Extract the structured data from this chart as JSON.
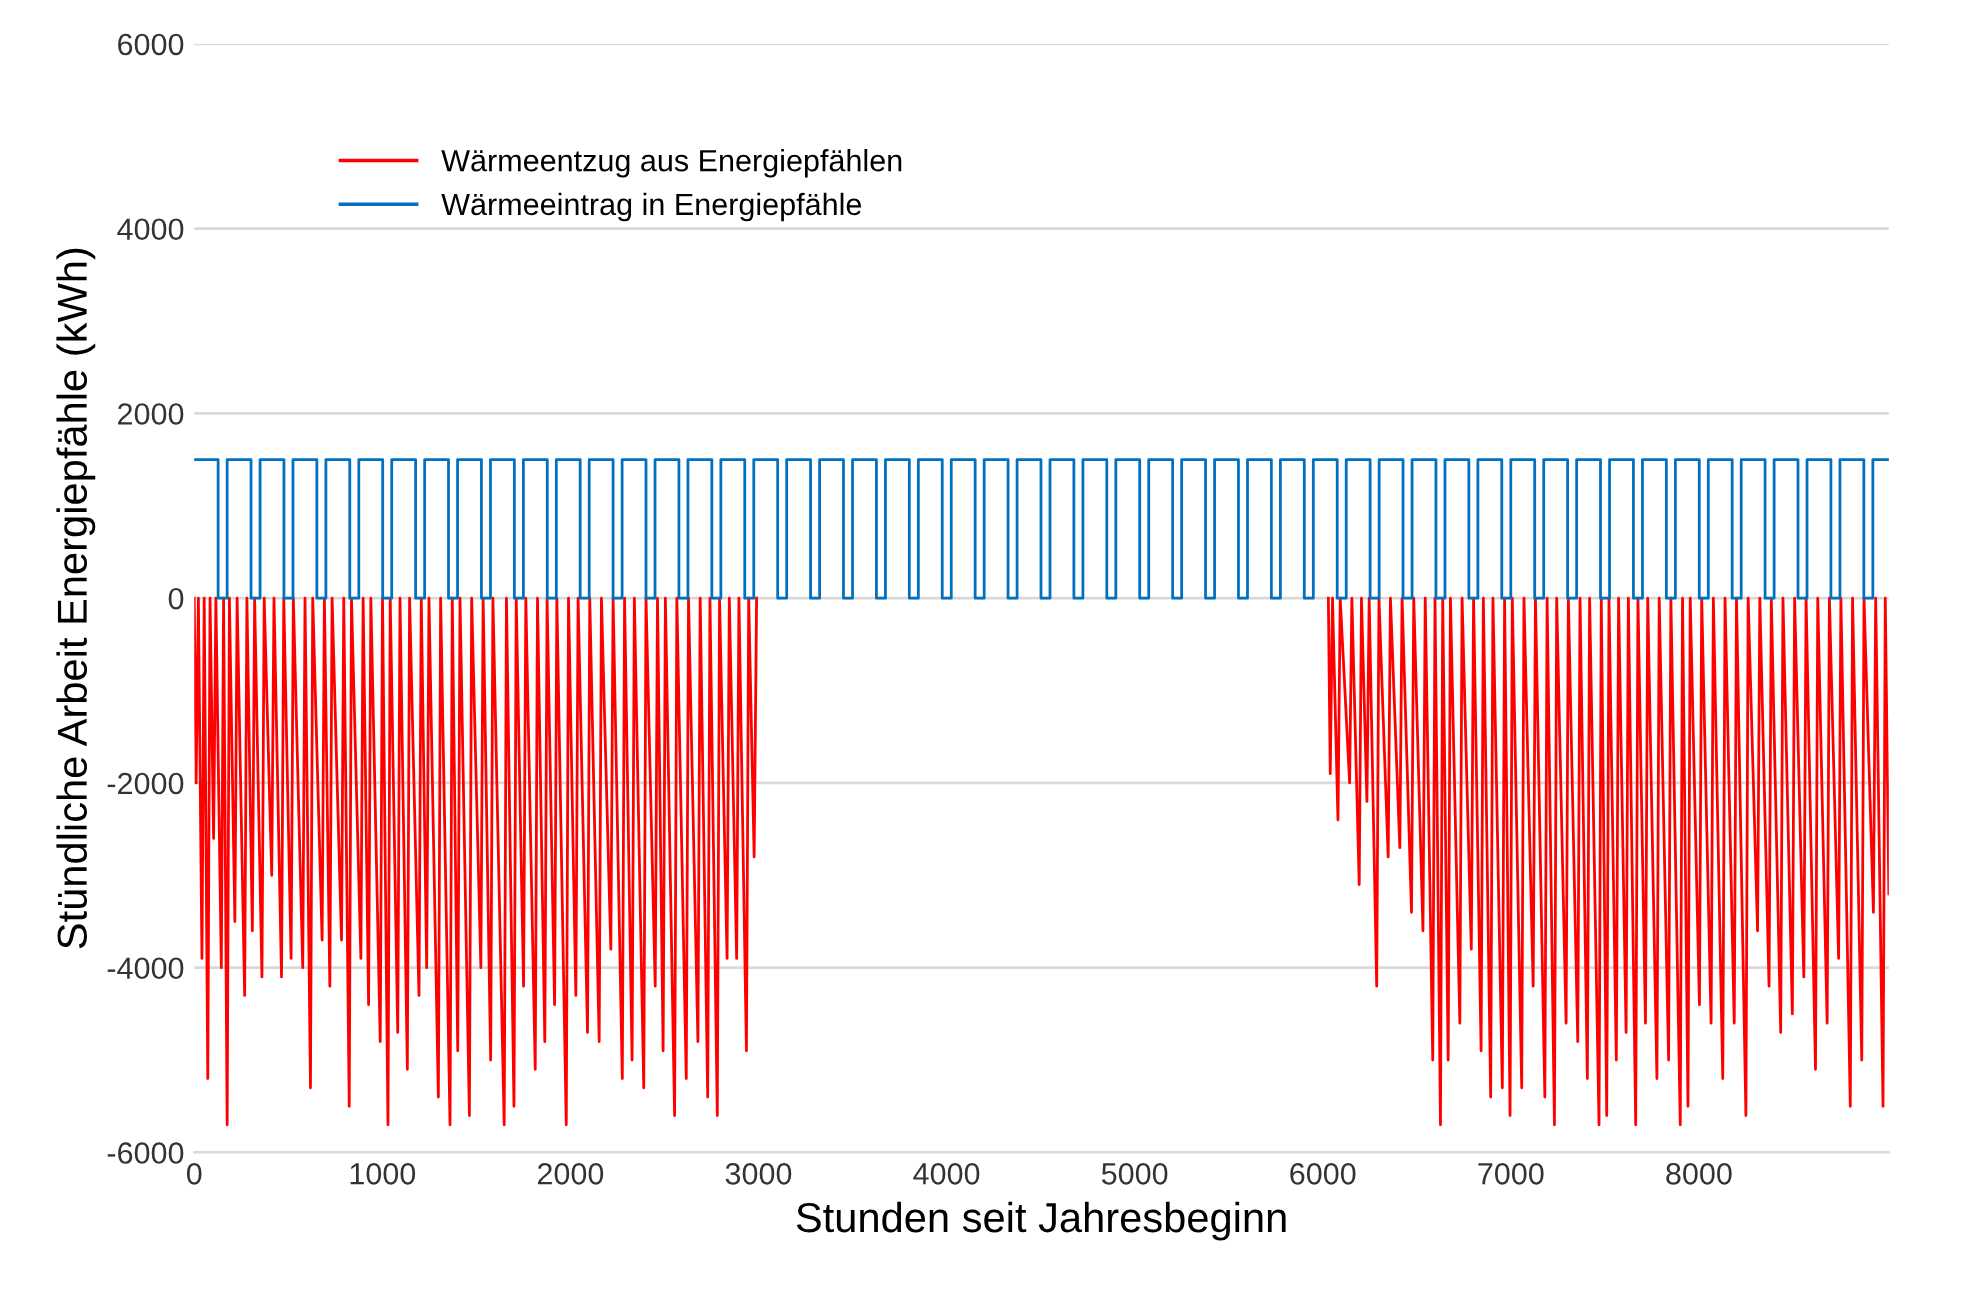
{
  "chart_data": {
    "type": "line",
    "xlabel": "Stunden seit Jahresbeginn",
    "ylabel": "Stündliche Arbeit Energiepfähle (kWh)",
    "xlim": [
      0,
      9010
    ],
    "xticks": [
      0,
      1000,
      2000,
      3000,
      4000,
      5000,
      6000,
      7000,
      8000
    ],
    "ylim": [
      -6000,
      6000
    ],
    "yticks": [
      -6000,
      -4000,
      -2000,
      0,
      2000,
      4000,
      6000
    ],
    "grid": "y",
    "legend": "top left",
    "series": [
      {
        "name": "Wärmeentzug aus Energiepfählen",
        "color": "#ff0000",
        "x": [
          0,
          10,
          22,
          41,
          53,
          72,
          84,
          103,
          115,
          144,
          156,
          175,
          187,
          216,
          228,
          268,
          280,
          309,
          321,
          360,
          372,
          412,
          424,
          464,
          476,
          515,
          527,
          577,
          589,
          618,
          630,
          680,
          692,
          721,
          733,
          783,
          795,
          824,
          836,
          886,
          898,
          927,
          939,
          989,
          1001,
          1030,
          1042,
          1082,
          1094,
          1133,
          1145,
          1195,
          1207,
          1236,
          1248,
          1298,
          1310,
          1360,
          1372,
          1401,
          1413,
          1463,
          1475,
          1524,
          1536,
          1576,
          1588,
          1648,
          1660,
          1700,
          1712,
          1751,
          1763,
          1813,
          1825,
          1864,
          1876,
          1916,
          1928,
          1978,
          1990,
          2029,
          2041,
          2091,
          2103,
          2153,
          2165,
          2215,
          2227,
          2276,
          2288,
          2328,
          2340,
          2390,
          2402,
          2451,
          2463,
          2493,
          2505,
          2554,
          2566,
          2616,
          2628,
          2678,
          2690,
          2730,
          2742,
          2781,
          2793,
          2833,
          2845,
          2884,
          2896,
          2936,
          2948,
          2977,
          2990,
          4500,
          6030,
          6040,
          6052,
          6081,
          6093,
          6143,
          6155,
          6194,
          6206,
          6235,
          6247,
          6287,
          6299,
          6348,
          6360,
          6410,
          6422,
          6472,
          6484,
          6533,
          6545,
          6585,
          6597,
          6626,
          6638,
          6667,
          6679,
          6729,
          6741,
          6790,
          6802,
          6842,
          6854,
          6893,
          6905,
          6955,
          6967,
          6996,
          7008,
          7058,
          7070,
          7119,
          7131,
          7181,
          7193,
          7232,
          7244,
          7294,
          7306,
          7356,
          7368,
          7407,
          7419,
          7469,
          7481,
          7510,
          7522,
          7561,
          7573,
          7613,
          7625,
          7664,
          7676,
          7716,
          7728,
          7777,
          7789,
          7839,
          7851,
          7901,
          7913,
          7942,
          7954,
          8003,
          8015,
          8065,
          8077,
          8127,
          8139,
          8188,
          8200,
          8250,
          8262,
          8312,
          8324,
          8373,
          8385,
          8435,
          8447,
          8497,
          8509,
          8558,
          8570,
          8620,
          8632,
          8682,
          8694,
          8743,
          8755,
          8805,
          8817,
          8866,
          8878,
          8928,
          8940,
          8979,
          8991,
          9010
        ],
        "values": [
          0,
          -2000,
          0,
          -3900,
          0,
          -5200,
          0,
          -2600,
          0,
          -4000,
          0,
          -5700,
          0,
          -3500,
          0,
          -4300,
          0,
          -3600,
          0,
          -4100,
          0,
          -3000,
          0,
          -4100,
          0,
          -3900,
          0,
          -4000,
          0,
          -5300,
          0,
          -3700,
          0,
          -4200,
          0,
          -3700,
          0,
          -5500,
          0,
          -3900,
          0,
          -4400,
          0,
          -4800,
          0,
          -5700,
          0,
          -4700,
          0,
          -5100,
          0,
          -4300,
          0,
          -4000,
          0,
          -5400,
          0,
          -5700,
          0,
          -4900,
          0,
          -5600,
          0,
          -4000,
          0,
          -5000,
          0,
          -5700,
          0,
          -5500,
          0,
          -4200,
          0,
          -5100,
          0,
          -4800,
          0,
          -4400,
          0,
          -5700,
          0,
          -4300,
          0,
          -4700,
          0,
          -4800,
          0,
          -3800,
          0,
          -5200,
          0,
          -5000,
          0,
          -5300,
          0,
          -4200,
          0,
          -4900,
          0,
          -5600,
          0,
          -5200,
          0,
          -4800,
          0,
          -5400,
          0,
          -5600,
          0,
          -3900,
          0,
          -3900,
          0,
          -4900,
          0,
          -2800,
          0,
          null,
          0,
          -1900,
          0,
          -2400,
          0,
          -2000,
          0,
          -3100,
          0,
          -2200,
          0,
          -4200,
          0,
          -2800,
          0,
          -2700,
          0,
          -3400,
          0,
          -3600,
          0,
          -5000,
          0,
          -5700,
          0,
          -5000,
          0,
          -4600,
          0,
          -3800,
          0,
          -4900,
          0,
          -5400,
          0,
          -5300,
          0,
          -5600,
          0,
          -5300,
          0,
          -4200,
          0,
          -5400,
          0,
          -5700,
          0,
          -4600,
          0,
          -4800,
          0,
          -5200,
          0,
          -5700,
          0,
          -5600,
          0,
          -5000,
          0,
          -4700,
          0,
          -5700,
          0,
          -4600,
          0,
          -5200,
          0,
          -5000,
          0,
          -5700,
          0,
          -5500,
          0,
          -4400,
          0,
          -4600,
          0,
          -5200,
          0,
          -4600,
          0,
          -5600,
          0,
          -3600,
          0,
          -4200,
          0,
          -4700,
          0,
          -4500,
          0,
          -4100,
          0,
          -5100,
          0,
          -4600,
          0,
          -3900,
          0,
          -5500,
          0,
          -5000,
          0,
          -3400,
          0,
          -5500,
          0,
          -3200
        ]
      },
      {
        "name": "Wärmeeintrag in Energiepfähle",
        "color": "#0070c0",
        "type": "step",
        "x": [
          0,
          127,
          175,
          302,
          350,
          477,
          525,
          652,
          700,
          827,
          875,
          1002,
          1050,
          1177,
          1225,
          1352,
          1400,
          1527,
          1575,
          1702,
          1750,
          1877,
          1925,
          2052,
          2100,
          2227,
          2275,
          2402,
          2450,
          2577,
          2625,
          2752,
          2800,
          2927,
          2975,
          3102,
          3150,
          3277,
          3325,
          3452,
          3500,
          3627,
          3675,
          3802,
          3850,
          3977,
          4025,
          4152,
          4200,
          4327,
          4375,
          4502,
          4550,
          4677,
          4725,
          4852,
          4900,
          5027,
          5075,
          5202,
          5250,
          5377,
          5425,
          5552,
          5600,
          5727,
          5775,
          5902,
          5950,
          6077,
          6125,
          6252,
          6300,
          6427,
          6475,
          6602,
          6650,
          6777,
          6825,
          6952,
          7000,
          7127,
          7175,
          7302,
          7350,
          7477,
          7525,
          7652,
          7700,
          7827,
          7875,
          8002,
          8050,
          8177,
          8225,
          8352,
          8400,
          8527,
          8575,
          8702,
          8750,
          8877,
          8925,
          9010
        ],
        "values": [
          1500,
          0,
          1500,
          0,
          1500,
          0,
          1500,
          0,
          1500,
          0,
          1500,
          0,
          1500,
          0,
          1500,
          0,
          1500,
          0,
          1500,
          0,
          1500,
          0,
          1500,
          0,
          1500,
          0,
          1500,
          0,
          1500,
          0,
          1500,
          0,
          1500,
          0,
          1500,
          0,
          1500,
          0,
          1500,
          0,
          1500,
          0,
          1500,
          0,
          1500,
          0,
          1500,
          0,
          1500,
          0,
          1500,
          0,
          1500,
          0,
          1500,
          0,
          1500,
          0,
          1500,
          0,
          1500,
          0,
          1500,
          0,
          1500,
          0,
          1500,
          0,
          1500,
          0,
          1500,
          0,
          1500,
          0,
          1500,
          0,
          1500,
          0,
          1500,
          0,
          1500,
          0,
          1500,
          0,
          1500,
          0,
          1500,
          0,
          1500,
          0,
          1500,
          0,
          1500,
          0,
          1500,
          0,
          1500,
          0,
          1500,
          0,
          1500,
          0,
          1500,
          1500
        ]
      }
    ]
  }
}
